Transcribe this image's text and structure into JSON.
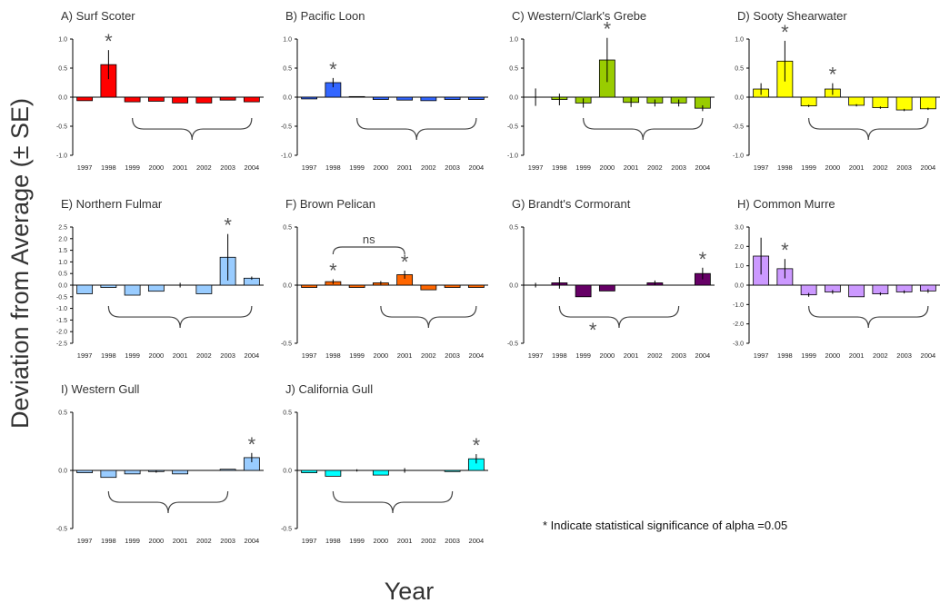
{
  "ylabel": "Deviation from Average (± SE)",
  "xlabel": "Year",
  "note": "* Indicate statistical significance of alpha =0.05",
  "chart_data": [
    {
      "type": "bar",
      "title": "A) Surf Scoter",
      "color": "#ff0000",
      "ylim": [
        -1.0,
        1.0
      ],
      "yticks": [
        "1.0",
        "0.5",
        "0.0",
        "-0.5",
        "-1.0"
      ],
      "categories": [
        "1997",
        "1998",
        "1999",
        "2000",
        "2001",
        "2002",
        "2003",
        "2004"
      ],
      "values": [
        -0.06,
        0.56,
        -0.08,
        -0.07,
        -0.1,
        -0.1,
        -0.05,
        -0.08
      ],
      "errors": [
        0,
        0.25,
        0,
        0,
        0,
        0,
        0,
        0
      ],
      "significant": [
        "1998"
      ],
      "brace": [
        "1999",
        "2004"
      ]
    },
    {
      "type": "bar",
      "title": "B) Pacific Loon",
      "color": "#3366ff",
      "ylim": [
        -1.0,
        1.0
      ],
      "yticks": [
        "1.0",
        "0.5",
        "0.0",
        "-0.5",
        "-1.0"
      ],
      "categories": [
        "1997",
        "1998",
        "1999",
        "2000",
        "2001",
        "2002",
        "2003",
        "2004"
      ],
      "values": [
        -0.03,
        0.25,
        0.01,
        -0.04,
        -0.05,
        -0.06,
        -0.04,
        -0.04
      ],
      "errors": [
        0,
        0.08,
        0,
        0,
        0,
        0,
        0,
        0
      ],
      "significant": [
        "1998"
      ],
      "brace": [
        "1999",
        "2004"
      ]
    },
    {
      "type": "bar",
      "title": "C) Western/Clark's Grebe",
      "color": "#99cc00",
      "ylim": [
        -1.0,
        1.0
      ],
      "yticks": [
        "1.0",
        "0.5",
        "0.0",
        "-0.5",
        "-1.0"
      ],
      "categories": [
        "1997",
        "1998",
        "1999",
        "2000",
        "2001",
        "2002",
        "2003",
        "2004"
      ],
      "values": [
        0.0,
        -0.04,
        -0.1,
        0.64,
        -0.09,
        -0.1,
        -0.1,
        -0.19
      ],
      "errors": [
        0.15,
        0.1,
        0.08,
        0.38,
        0.08,
        0.06,
        0.06,
        0.05
      ],
      "significant": [
        "2000"
      ],
      "brace": [
        "1999",
        "2004"
      ]
    },
    {
      "type": "bar",
      "title": "D) Sooty Shearwater",
      "color": "#ffff00",
      "ylim": [
        -1.0,
        1.0
      ],
      "yticks": [
        "1.0",
        "0.5",
        "0.0",
        "-0.5",
        "-1.0"
      ],
      "categories": [
        "1997",
        "1998",
        "1999",
        "2000",
        "2001",
        "2002",
        "2003",
        "2004"
      ],
      "values": [
        0.14,
        0.62,
        -0.15,
        0.14,
        -0.14,
        -0.18,
        -0.22,
        -0.2
      ],
      "errors": [
        0.1,
        0.35,
        0.02,
        0.1,
        0.02,
        0.02,
        0.02,
        0.02
      ],
      "significant": [
        "1998",
        "2000"
      ],
      "brace": [
        "1999",
        "2004"
      ]
    },
    {
      "type": "bar",
      "title": "E) Northern Fulmar",
      "color": "#99ccff",
      "ylim": [
        -2.5,
        2.5
      ],
      "yticks": [
        "2.5",
        "2.0",
        "1.5",
        "1.0",
        "0.5",
        "0.0",
        "-0.5",
        "-1.0",
        "-1.5",
        "-2.0",
        "-2.5"
      ],
      "categories": [
        "1997",
        "1998",
        "1999",
        "2000",
        "2001",
        "2002",
        "2003",
        "2004"
      ],
      "values": [
        -0.37,
        -0.1,
        -0.43,
        -0.26,
        0.0,
        -0.37,
        1.2,
        0.3
      ],
      "errors": [
        0,
        0,
        0,
        0,
        0.1,
        0,
        1.0,
        0.07
      ],
      "significant": [
        "2003"
      ],
      "brace": [
        "1998",
        "2004"
      ]
    },
    {
      "type": "bar",
      "title": "F) Brown Pelican",
      "color": "#ff6600",
      "ylim": [
        -0.5,
        0.5
      ],
      "yticks": [
        "0.5",
        "0.0",
        "-0.5"
      ],
      "categories": [
        "1997",
        "1998",
        "1999",
        "2000",
        "2001",
        "2002",
        "2003",
        "2004"
      ],
      "values": [
        -0.02,
        0.03,
        -0.02,
        0.02,
        0.09,
        -0.04,
        -0.02,
        -0.02
      ],
      "errors": [
        0,
        0.02,
        0,
        0.015,
        0.035,
        0,
        0,
        0
      ],
      "significant": [
        "1998",
        "2001"
      ],
      "brace": [
        "2000",
        "2004"
      ],
      "comparison": {
        "label": "ns",
        "from": "1998",
        "to": "2001"
      }
    },
    {
      "type": "bar",
      "title": "G) Brandt's Cormorant",
      "color": "#660066",
      "ylim": [
        -0.5,
        0.5
      ],
      "yticks": [
        "0.5",
        "0.0",
        "-0.5"
      ],
      "categories": [
        "1997",
        "1998",
        "1999",
        "2000",
        "2001",
        "2002",
        "2003",
        "2004"
      ],
      "values": [
        0.0,
        0.02,
        -0.1,
        -0.05,
        0.0,
        0.02,
        0.0,
        0.1
      ],
      "errors": [
        0.02,
        0.05,
        0,
        0,
        0,
        0.02,
        0,
        0.05
      ],
      "significant": [
        "2004"
      ],
      "brace": [
        "1998",
        "2003"
      ],
      "brace_starred": true
    },
    {
      "type": "bar",
      "title": "H) Common Murre",
      "color": "#cc99ff",
      "ylim": [
        -3.0,
        3.0
      ],
      "yticks": [
        "3.0",
        "2.0",
        "1.0",
        "0.0",
        "-1.0",
        "-2.0",
        "-3.0"
      ],
      "categories": [
        "1997",
        "1998",
        "1999",
        "2000",
        "2001",
        "2002",
        "2003",
        "2004"
      ],
      "values": [
        1.5,
        0.85,
        -0.5,
        -0.35,
        -0.6,
        -0.45,
        -0.35,
        -0.3
      ],
      "errors": [
        0.95,
        0.5,
        0.1,
        0.1,
        0,
        0.08,
        0.08,
        0.1
      ],
      "significant": [
        "1998"
      ],
      "brace": [
        "1999",
        "2004"
      ]
    },
    {
      "type": "bar",
      "title": "I) Western Gull",
      "color": "#99ccff",
      "ylim": [
        -0.5,
        0.5
      ],
      "yticks": [
        "0.5",
        "0.0",
        "-0.5"
      ],
      "categories": [
        "1997",
        "1998",
        "1999",
        "2000",
        "2001",
        "2002",
        "2003",
        "2004"
      ],
      "values": [
        -0.02,
        -0.06,
        -0.03,
        -0.01,
        -0.03,
        0.0,
        0.01,
        0.11
      ],
      "errors": [
        0,
        0,
        0,
        0.01,
        0,
        0,
        0,
        0.04
      ],
      "significant": [
        "2004"
      ],
      "brace": [
        "1998",
        "2003"
      ]
    },
    {
      "type": "bar",
      "title": "J) California Gull",
      "color": "#00ffff",
      "ylim": [
        -0.5,
        0.5
      ],
      "yticks": [
        "0.5",
        "0.0",
        "-0.5"
      ],
      "categories": [
        "1997",
        "1998",
        "1999",
        "2000",
        "2001",
        "2002",
        "2003",
        "2004"
      ],
      "values": [
        -0.02,
        -0.05,
        0.0,
        -0.04,
        0.0,
        0.0,
        -0.01,
        0.1
      ],
      "errors": [
        0,
        0,
        0.01,
        0,
        0.02,
        0,
        0,
        0.04
      ],
      "significant": [
        "2004"
      ],
      "brace": [
        "1998",
        "2003"
      ]
    }
  ]
}
